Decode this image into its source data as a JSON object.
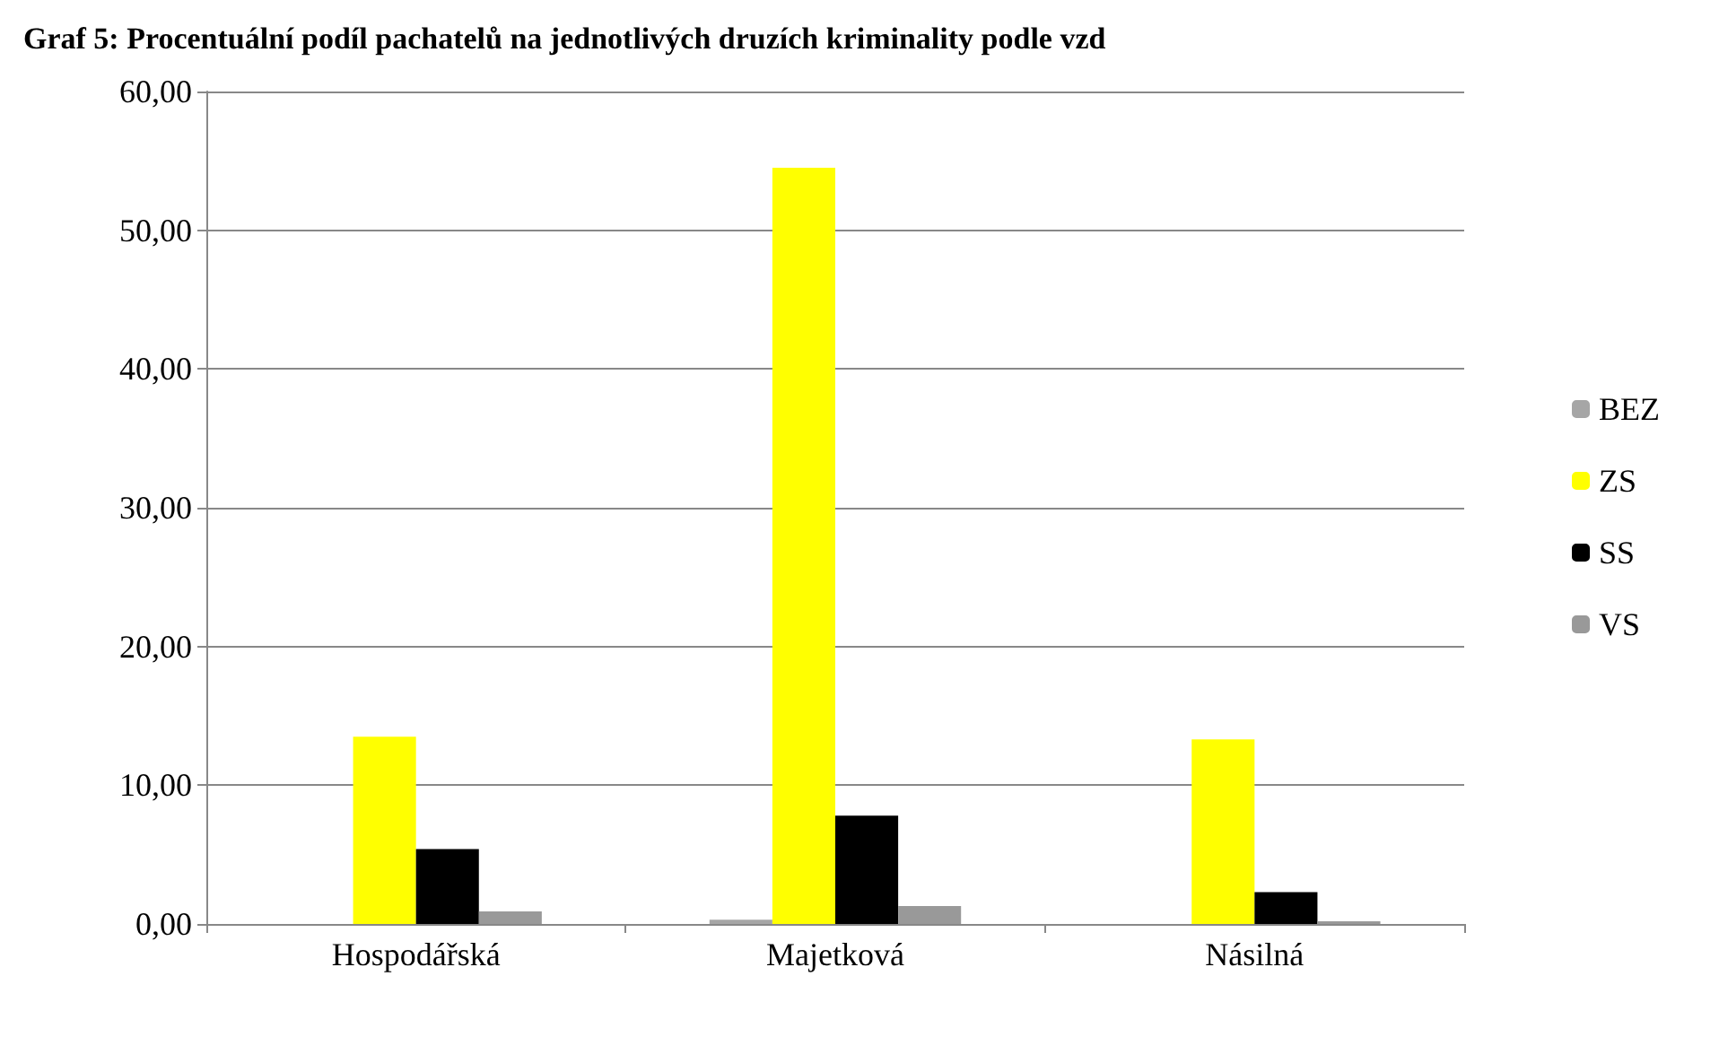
{
  "chart_data": {
    "type": "bar",
    "title": "Graf 5: Procentuální podíl pachatelů na jednotlivých druzích kriminality podle vzd",
    "categories": [
      "Hospodářská",
      "Majetková",
      "Násilná"
    ],
    "series": [
      {
        "name": "BEZ",
        "color": "#a6a6a6",
        "values": [
          null,
          0.3,
          null
        ]
      },
      {
        "name": "ZS",
        "color": "#ffff00",
        "values": [
          13.5,
          54.5,
          13.3
        ]
      },
      {
        "name": "SS",
        "color": "#000000",
        "values": [
          5.4,
          7.8,
          2.3
        ]
      },
      {
        "name": "VS",
        "color": "#999999",
        "values": [
          0.9,
          1.3,
          0.2
        ]
      }
    ],
    "ylim": [
      0,
      60
    ],
    "yticks": [
      {
        "value": 0,
        "label": "0,00"
      },
      {
        "value": 10,
        "label": "10,00"
      },
      {
        "value": 20,
        "label": "20,00"
      },
      {
        "value": 30,
        "label": "30,00"
      },
      {
        "value": 40,
        "label": "40,00"
      },
      {
        "value": 50,
        "label": "50,00"
      },
      {
        "value": 60,
        "label": "60,00"
      }
    ],
    "grid": "y",
    "legend": "right"
  }
}
